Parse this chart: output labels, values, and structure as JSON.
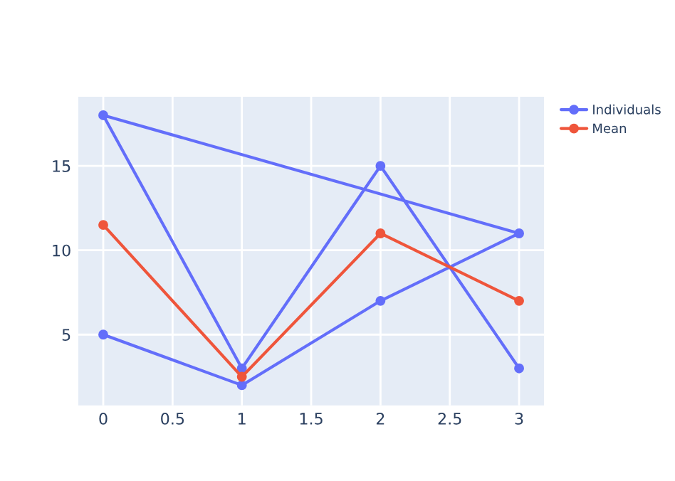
{
  "chart_data": {
    "type": "line",
    "marker": "circle",
    "grid": true,
    "legend": "top right",
    "xlim": [
      -0.18,
      3.18
    ],
    "xticks": [
      0,
      0.5,
      1,
      1.5,
      2,
      2.5,
      3
    ],
    "ylim": [
      0.8,
      19.1
    ],
    "yticks": [
      5,
      10,
      15
    ],
    "series": [
      {
        "name": "Individuals",
        "color": "#636efa",
        "x": [
          0,
          1,
          2,
          3,
          0,
          1,
          2,
          3
        ],
        "values": [
          5,
          2,
          7,
          11,
          18,
          3,
          15,
          3
        ]
      },
      {
        "name": "Mean",
        "color": "#ef553b",
        "x": [
          0,
          1,
          2,
          3
        ],
        "values": [
          11.5,
          2.5,
          11,
          7
        ]
      }
    ]
  }
}
